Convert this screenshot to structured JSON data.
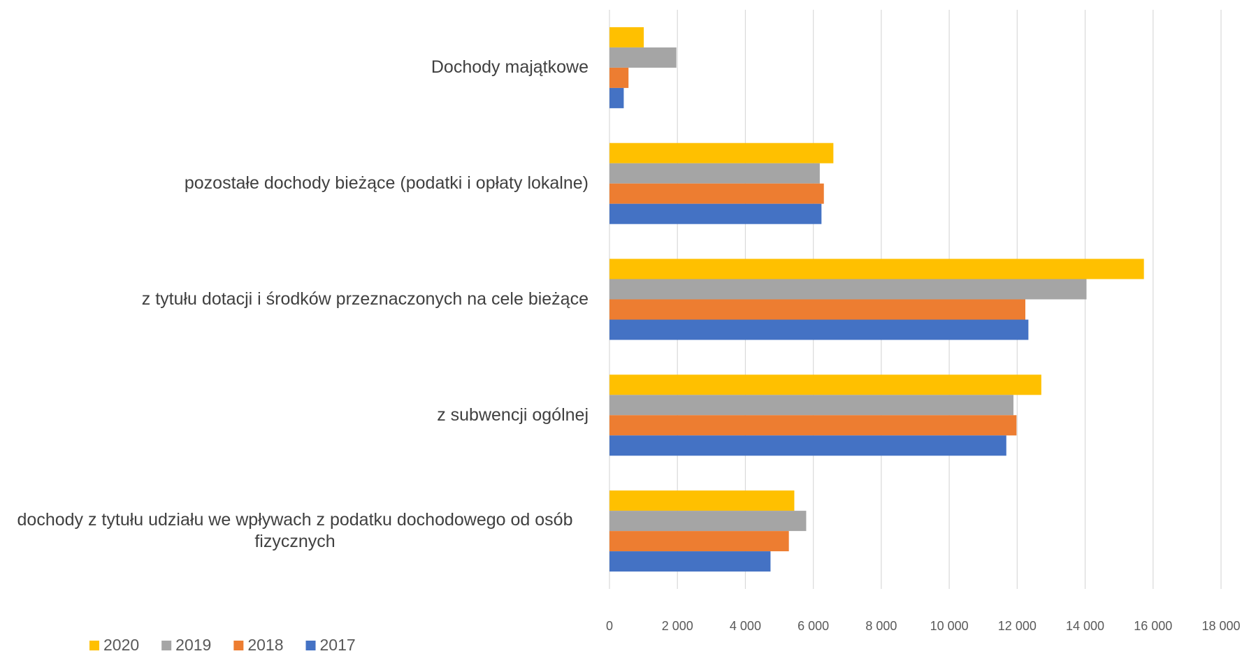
{
  "chart_data": {
    "type": "barh",
    "categories": [
      "Dochody majątkowe",
      "pozostałe dochody bieżące (podatki i opłaty lokalne)",
      "z tytułu dotacji i środków przeznaczonych na cele bieżące",
      "z subwencji ogólnej",
      "dochody z tytułu udziału we wpływach z podatku dochodowego od osób fizycznych"
    ],
    "series": [
      {
        "name": "2020",
        "color": "#ffc000",
        "values": [
          1010,
          6590,
          15730,
          12710,
          5440
        ]
      },
      {
        "name": "2019",
        "color": "#a5a5a5",
        "values": [
          1970,
          6190,
          14040,
          11890,
          5790
        ]
      },
      {
        "name": "2018",
        "color": "#ed7d31",
        "values": [
          560,
          6310,
          12240,
          11980,
          5280
        ]
      },
      {
        "name": "2017",
        "color": "#4472c4",
        "values": [
          420,
          6240,
          12330,
          11680,
          4740
        ]
      }
    ],
    "xlim": [
      0,
      18000
    ],
    "xticks": [
      0,
      {
        "value": 2000,
        "label": "2 000"
      },
      {
        "value": 4000,
        "label": "4 000"
      },
      {
        "value": 6000,
        "label": "6 000"
      },
      {
        "value": 8000,
        "label": "8 000"
      },
      {
        "value": 10000,
        "label": "10 000"
      },
      {
        "value": 12000,
        "label": "12 000"
      },
      {
        "value": 14000,
        "label": "14 000"
      },
      {
        "value": 16000,
        "label": "16 000"
      },
      {
        "value": 18000,
        "label": "18 000"
      }
    ],
    "grid": true,
    "legend": "bottom-left"
  }
}
